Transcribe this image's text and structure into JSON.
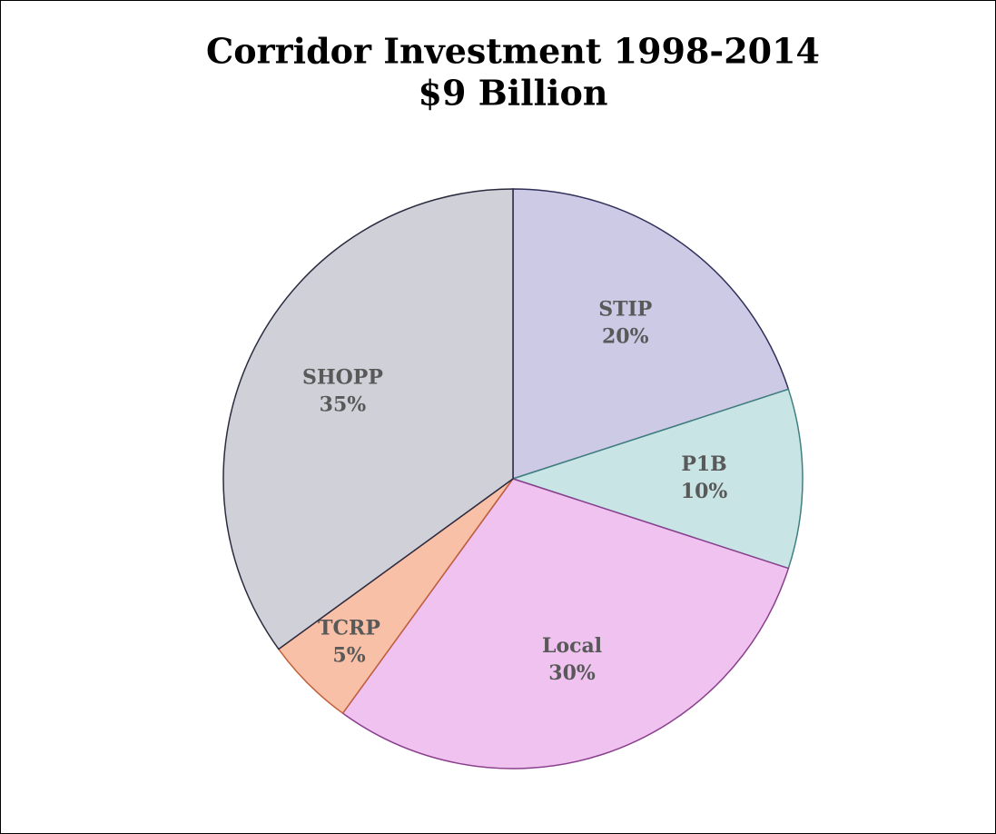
{
  "chart_data": {
    "type": "pie",
    "title": [
      "Corridor Investment 1998-2014",
      "$9 Billion"
    ],
    "categories": [
      "STIP",
      "P1B",
      "Local",
      "TCRP",
      "SHOPP"
    ],
    "values": [
      20,
      10,
      30,
      5,
      35
    ],
    "value_labels": [
      "20%",
      "10%",
      "30%",
      "5%",
      "35%"
    ],
    "colors": [
      "#cdcae6",
      "#c8e4e5",
      "#efc2f0",
      "#f9c0a8",
      "#d0d0d8"
    ],
    "strokes": [
      "#2f2f5a",
      "#3f7f80",
      "#8a3f8c",
      "#c0603a",
      "#2b2b40"
    ]
  }
}
